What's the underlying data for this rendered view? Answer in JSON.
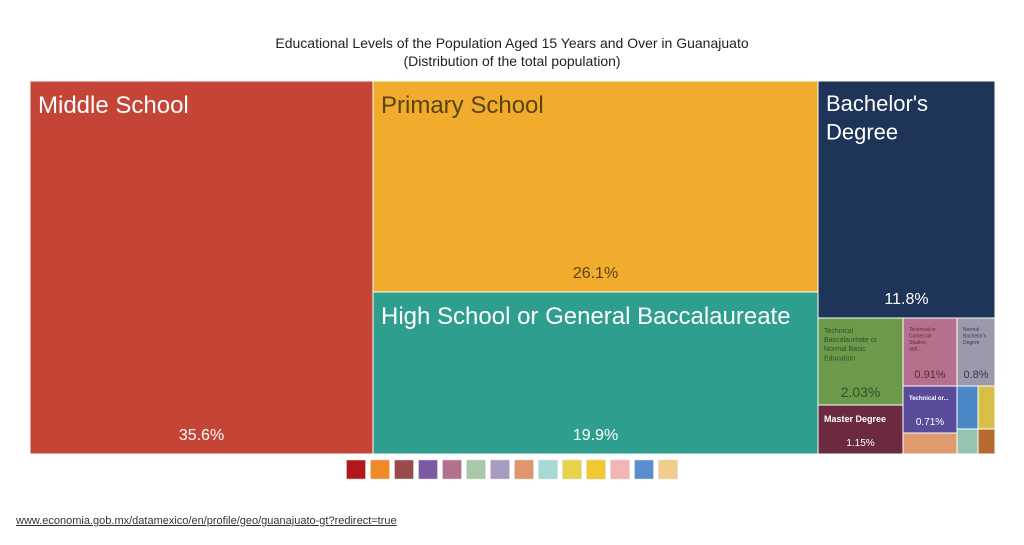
{
  "title": "Educational Levels of the Population Aged 15 Years and Over in Guanajuato",
  "subtitle": "(Distribution of the total population)",
  "footer_link": "www.economia.gob.mx/datamexico/en/profile/geo/guanajuato-gt?redirect=true",
  "chart_data": {
    "type": "treemap",
    "title": "Educational Levels of the Population Aged 15 Years and Over in Guanajuato",
    "subtitle": "(Distribution of the total population)",
    "items": [
      {
        "label": "Middle School",
        "value": 35.6,
        "value_label": "35.6%",
        "color": "#c44536"
      },
      {
        "label": "Primary School",
        "value": 26.1,
        "value_label": "26.1%",
        "color": "#f2ac2d"
      },
      {
        "label": "High School or General Baccalaureate",
        "value": 19.9,
        "value_label": "19.9%",
        "color": "#2e9e8e"
      },
      {
        "label": "Bachelor's Degree",
        "value": 11.8,
        "value_label": "11.8%",
        "color": "#1e3458"
      },
      {
        "label": "Technical Baccalaureate or Normal Basic Education",
        "value": 2.03,
        "value_label": "2.03%",
        "color": "#6a9a4a"
      },
      {
        "label": "Technical or Comercial Studies, and...",
        "value": 0.91,
        "value_label": "0.91%",
        "color": "#b5708d"
      },
      {
        "label": "Normal Bachelor's Degree",
        "value": 0.8,
        "value_label": "0.8%",
        "color": "#9a9aaa"
      },
      {
        "label": "Master Degree",
        "value": 1.15,
        "value_label": "1.15%",
        "color": "#6b2a40"
      },
      {
        "label": "Technical or...",
        "value": 0.71,
        "value_label": "0.71%",
        "color": "#5a4a9a"
      },
      {
        "label": "",
        "value": 0.3,
        "value_label": "",
        "color": "#4a88c8"
      },
      {
        "label": "",
        "value": 0.25,
        "value_label": "",
        "color": "#d8c048"
      },
      {
        "label": "",
        "value": 0.25,
        "value_label": "",
        "color": "#e09a70"
      },
      {
        "label": "",
        "value": 0.15,
        "value_label": "",
        "color": "#94c4b0"
      },
      {
        "label": "",
        "value": 0.15,
        "value_label": "",
        "color": "#b86a2e"
      }
    ],
    "legend_colors": [
      "#b3161b",
      "#f08a24",
      "#9a4a4a",
      "#7a5aa2",
      "#b5708d",
      "#a8c8a8",
      "#a89ac0",
      "#e0956a",
      "#a8d8d4",
      "#e8d34a",
      "#f2c82e",
      "#f2b4b4",
      "#5a8ed0",
      "#f2cc8c"
    ]
  }
}
